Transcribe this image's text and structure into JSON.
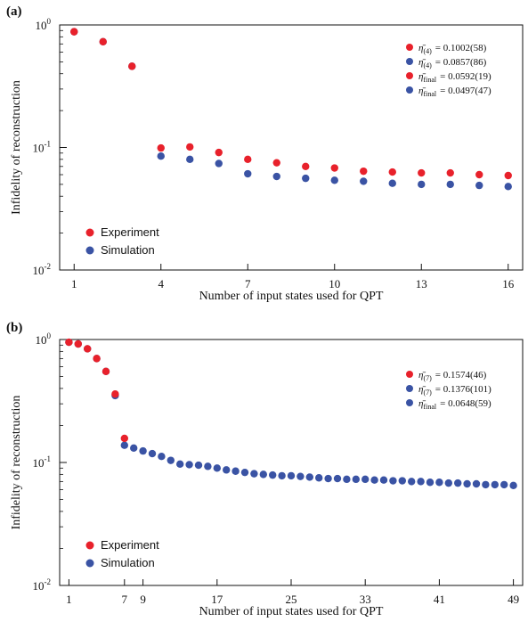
{
  "chart_data": [
    {
      "type": "scatter",
      "panel_label": "(a)",
      "xlabel": "Number of input states used for QPT",
      "ylabel": "Infidelity of reconstruction",
      "yscale": "log",
      "xlim": [
        0.5,
        16.5
      ],
      "ylim": [
        0.01,
        1
      ],
      "xticks": [
        1,
        4,
        7,
        10,
        13,
        16
      ],
      "yticks": [
        {
          "value": 1,
          "base": "10",
          "exp": "0"
        },
        {
          "value": 0.1,
          "base": "10",
          "exp": "-1"
        },
        {
          "value": 0.01,
          "base": "10",
          "exp": "-2"
        }
      ],
      "legend_position": "bottom-left",
      "series": [
        {
          "name": "Experiment",
          "color": "#e8212b",
          "x": [
            1,
            2,
            3,
            4,
            5,
            6,
            7,
            8,
            9,
            10,
            11,
            12,
            13,
            14,
            15,
            16
          ],
          "y": [
            0.88,
            0.73,
            0.46,
            0.099,
            0.101,
            0.091,
            0.08,
            0.075,
            0.07,
            0.068,
            0.064,
            0.063,
            0.062,
            0.062,
            0.06,
            0.059
          ]
        },
        {
          "name": "Simulation",
          "color": "#3a53a4",
          "x": [
            1,
            2,
            3,
            4,
            5,
            6,
            7,
            8,
            9,
            10,
            11,
            12,
            13,
            14,
            15,
            16
          ],
          "y": [
            0.88,
            0.73,
            0.46,
            0.085,
            0.08,
            0.074,
            0.061,
            0.058,
            0.056,
            0.054,
            0.053,
            0.051,
            0.05,
            0.05,
            0.049,
            0.048
          ]
        }
      ],
      "annotations": [
        {
          "color": "#e8212b",
          "symbol": "η̄",
          "sub": "(4)",
          "value": "= 0.1002(58)"
        },
        {
          "color": "#3a53a4",
          "symbol": "η̄",
          "sub": "(4)",
          "value": "= 0.0857(86)"
        },
        {
          "color": "#e8212b",
          "symbol": "η̄",
          "sub": "final",
          "value": "= 0.0592(19)"
        },
        {
          "color": "#3a53a4",
          "symbol": "η̄",
          "sub": "final",
          "value": "= 0.0497(47)"
        }
      ]
    },
    {
      "type": "scatter",
      "panel_label": "(b)",
      "xlabel": "Number of input states used for QPT",
      "ylabel": "Infidelity of reconstruction",
      "yscale": "log",
      "xlim": [
        0,
        50
      ],
      "ylim": [
        0.01,
        1
      ],
      "xticks": [
        1,
        7,
        9,
        17,
        25,
        33,
        41,
        49
      ],
      "yticks": [
        {
          "value": 1,
          "base": "10",
          "exp": "0"
        },
        {
          "value": 0.1,
          "base": "10",
          "exp": "-1"
        },
        {
          "value": 0.01,
          "base": "10",
          "exp": "-2"
        }
      ],
      "legend_position": "bottom-left",
      "series": [
        {
          "name": "Experiment",
          "color": "#e8212b",
          "x": [
            1,
            2,
            3,
            4,
            5,
            6,
            7
          ],
          "y": [
            0.95,
            0.92,
            0.84,
            0.7,
            0.55,
            0.36,
            0.157
          ]
        },
        {
          "name": "Simulation",
          "color": "#3a53a4",
          "x": [
            1,
            2,
            3,
            4,
            5,
            6,
            7,
            8,
            9,
            10,
            11,
            12,
            13,
            14,
            15,
            16,
            17,
            18,
            19,
            20,
            21,
            22,
            23,
            24,
            25,
            26,
            27,
            28,
            29,
            30,
            31,
            32,
            33,
            34,
            35,
            36,
            37,
            38,
            39,
            40,
            41,
            42,
            43,
            44,
            45,
            46,
            47,
            48,
            49
          ],
          "y": [
            0.95,
            0.92,
            0.84,
            0.7,
            0.55,
            0.35,
            0.138,
            0.131,
            0.124,
            0.118,
            0.112,
            0.104,
            0.097,
            0.096,
            0.095,
            0.093,
            0.09,
            0.087,
            0.085,
            0.083,
            0.081,
            0.08,
            0.079,
            0.078,
            0.078,
            0.077,
            0.076,
            0.075,
            0.074,
            0.074,
            0.073,
            0.073,
            0.073,
            0.072,
            0.072,
            0.071,
            0.071,
            0.07,
            0.07,
            0.069,
            0.069,
            0.068,
            0.068,
            0.067,
            0.067,
            0.066,
            0.066,
            0.066,
            0.065
          ]
        }
      ],
      "annotations": [
        {
          "color": "#e8212b",
          "symbol": "η̄",
          "sub": "(7)",
          "value": "= 0.1574(46)"
        },
        {
          "color": "#3a53a4",
          "symbol": "η̄",
          "sub": "(7)",
          "value": "= 0.1376(101)"
        },
        {
          "color": "#3a53a4",
          "symbol": "η̄",
          "sub": "final",
          "value": "= 0.0648(59)"
        }
      ]
    }
  ]
}
